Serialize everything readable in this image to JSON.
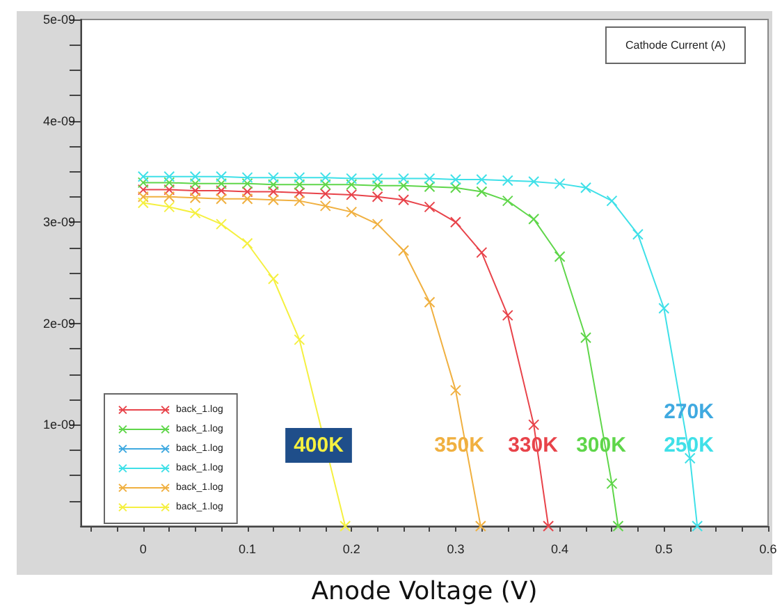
{
  "chart_data": {
    "type": "line",
    "xlabel": "Anode Voltage (V)",
    "ylabel": "Cathode Current (A)",
    "marker": "cross",
    "line_style": "solid",
    "grid": false,
    "legend": "bottom left",
    "xlim": [
      -0.06,
      0.6
    ],
    "xticks": [
      {
        "value": -0.05,
        "label": null
      },
      {
        "value": -0.025,
        "label": null
      },
      0,
      {
        "value": 0.025,
        "label": null
      },
      {
        "value": 0.05,
        "label": null
      },
      {
        "value": 0.075,
        "label": null
      },
      0.1,
      {
        "value": 0.125,
        "label": null
      },
      {
        "value": 0.15,
        "label": null
      },
      {
        "value": 0.175,
        "label": null
      },
      0.2,
      {
        "value": 0.225,
        "label": null
      },
      {
        "value": 0.25,
        "label": null
      },
      {
        "value": 0.275,
        "label": null
      },
      0.3,
      {
        "value": 0.325,
        "label": null
      },
      {
        "value": 0.35,
        "label": null
      },
      {
        "value": 0.375,
        "label": null
      },
      0.4,
      {
        "value": 0.425,
        "label": null
      },
      {
        "value": 0.45,
        "label": null
      },
      {
        "value": 0.475,
        "label": null
      },
      0.5,
      {
        "value": 0.525,
        "label": null
      },
      {
        "value": 0.55,
        "label": null
      },
      {
        "value": 0.575,
        "label": null
      },
      0.6
    ],
    "ylim": [
      0,
      5e-09
    ],
    "yticks": [
      {
        "value": 2.5e-10,
        "label": null
      },
      {
        "value": 5e-10,
        "label": null
      },
      {
        "value": 7.5e-10,
        "label": null
      },
      {
        "value": 1e-09,
        "label": "1e-09"
      },
      {
        "value": 1.25e-09,
        "label": null
      },
      {
        "value": 1.5e-09,
        "label": null
      },
      {
        "value": 1.75e-09,
        "label": null
      },
      {
        "value": 2e-09,
        "label": "2e-09"
      },
      {
        "value": 2.25e-09,
        "label": null
      },
      {
        "value": 2.5e-09,
        "label": null
      },
      {
        "value": 2.75e-09,
        "label": null
      },
      {
        "value": 3e-09,
        "label": "3e-09"
      },
      {
        "value": 3.25e-09,
        "label": null
      },
      {
        "value": 3.5e-09,
        "label": null
      },
      {
        "value": 3.75e-09,
        "label": null
      },
      {
        "value": 4e-09,
        "label": "4e-09"
      },
      {
        "value": 4.25e-09,
        "label": null
      },
      {
        "value": 4.5e-09,
        "label": null
      },
      {
        "value": 4.75e-09,
        "label": null
      },
      {
        "value": 5e-09,
        "label": "5e-09"
      }
    ],
    "series": [
      {
        "name": "back_1.log",
        "color": "#e8434a",
        "x": [
          0,
          0.025,
          0.05,
          0.075,
          0.1,
          0.125,
          0.15,
          0.175,
          0.2,
          0.225,
          0.25,
          0.275,
          0.3,
          0.325,
          0.35,
          0.375,
          0.389
        ],
        "values": [
          3.32e-09,
          3.32e-09,
          3.31e-09,
          3.31e-09,
          3.3e-09,
          3.3e-09,
          3.29e-09,
          3.28e-09,
          3.27e-09,
          3.25e-09,
          3.22e-09,
          3.15e-09,
          3e-09,
          2.7e-09,
          2.08e-09,
          1e-09,
          0
        ]
      },
      {
        "name": "back_1.log",
        "color": "#5fd64a",
        "x": [
          0,
          0.025,
          0.05,
          0.075,
          0.1,
          0.125,
          0.15,
          0.175,
          0.2,
          0.225,
          0.25,
          0.275,
          0.3,
          0.325,
          0.35,
          0.375,
          0.4,
          0.425,
          0.45,
          0.456
        ],
        "values": [
          3.39e-09,
          3.39e-09,
          3.38e-09,
          3.38e-09,
          3.38e-09,
          3.37e-09,
          3.37e-09,
          3.37e-09,
          3.37e-09,
          3.36e-09,
          3.36e-09,
          3.35e-09,
          3.34e-09,
          3.3e-09,
          3.21e-09,
          3.03e-09,
          2.66e-09,
          1.86e-09,
          4.2e-10,
          0
        ]
      },
      {
        "name": "back_1.log",
        "color": "#3fa9e0"
      },
      {
        "name": "back_1.log",
        "color": "#3fe0e8",
        "x": [
          0,
          0.025,
          0.05,
          0.075,
          0.1,
          0.125,
          0.15,
          0.175,
          0.2,
          0.225,
          0.25,
          0.275,
          0.3,
          0.325,
          0.35,
          0.375,
          0.4,
          0.425,
          0.45,
          0.475,
          0.5,
          0.525,
          0.532
        ],
        "values": [
          3.45e-09,
          3.45e-09,
          3.45e-09,
          3.45e-09,
          3.44e-09,
          3.44e-09,
          3.44e-09,
          3.44e-09,
          3.43e-09,
          3.43e-09,
          3.43e-09,
          3.43e-09,
          3.42e-09,
          3.42e-09,
          3.41e-09,
          3.4e-09,
          3.38e-09,
          3.34e-09,
          3.21e-09,
          2.88e-09,
          2.15e-09,
          6.7e-10,
          0
        ]
      },
      {
        "name": "back_1.log",
        "color": "#f0b040",
        "x": [
          0,
          0.025,
          0.05,
          0.075,
          0.1,
          0.125,
          0.15,
          0.175,
          0.2,
          0.225,
          0.25,
          0.275,
          0.3,
          0.324
        ],
        "values": [
          3.25e-09,
          3.25e-09,
          3.24e-09,
          3.23e-09,
          3.23e-09,
          3.22e-09,
          3.21e-09,
          3.16e-09,
          3.1e-09,
          2.98e-09,
          2.72e-09,
          2.21e-09,
          1.34e-09,
          0
        ]
      },
      {
        "name": "back_1.log",
        "color": "#f5f040",
        "x": [
          0,
          0.025,
          0.05,
          0.075,
          0.1,
          0.125,
          0.15,
          0.175,
          0.194
        ],
        "values": [
          3.19e-09,
          3.15e-09,
          3.09e-09,
          2.98e-09,
          2.79e-09,
          2.44e-09,
          1.84e-09,
          null,
          0
        ]
      }
    ],
    "annotations": [
      "330K",
      "300K",
      "270K",
      "250K",
      "350K",
      "400K"
    ]
  }
}
